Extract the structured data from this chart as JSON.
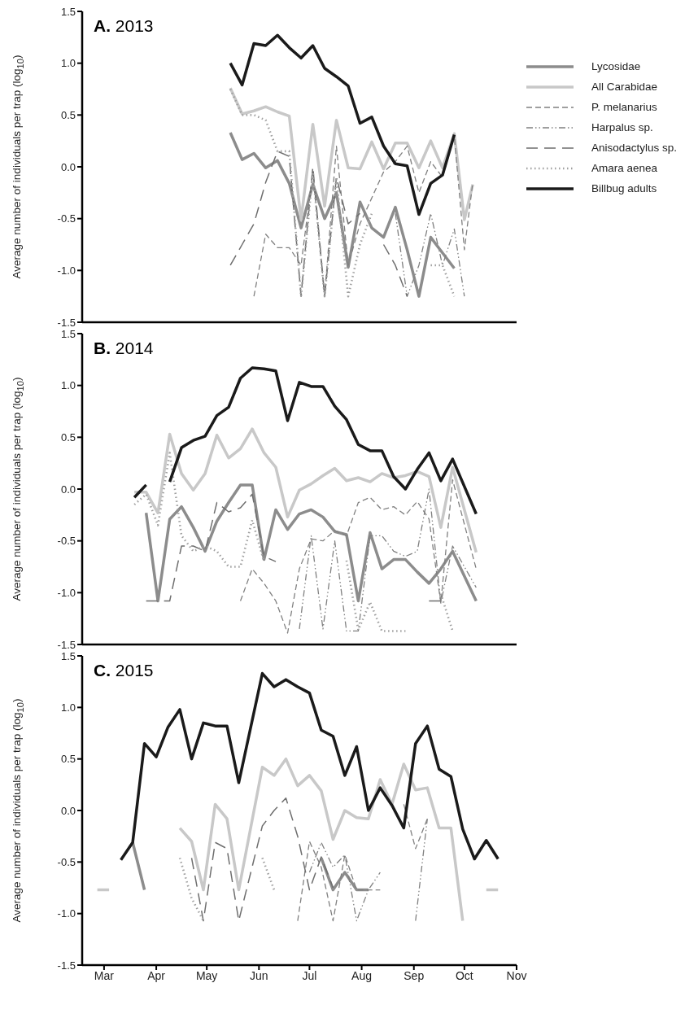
{
  "chart_data": [
    {
      "type": "line",
      "title": "A. 2013",
      "ylabel": "Average number of individuals per trap (log$_{10}$)",
      "x": [
        "--05-15",
        "--05-22",
        "--05-29",
        "--06-05",
        "--06-12",
        "--06-19",
        "--06-26",
        "--07-03",
        "--07-10",
        "--07-17",
        "--07-24",
        "--07-31",
        "--08-07",
        "--08-14",
        "--08-21",
        "--08-28",
        "--09-04",
        "--09-11",
        "--09-18",
        "--09-25",
        "--10-01",
        "--10-06"
      ],
      "series": [
        {
          "name": "Lycosidae",
          "color": "#8c8c8c",
          "line_style": "solid",
          "values": [
            0.33,
            0.07,
            0.13,
            -0.01,
            0.06,
            -0.16,
            -0.59,
            -0.17,
            -0.5,
            -0.25,
            -0.97,
            -0.34,
            -0.59,
            -0.68,
            -0.39,
            -0.8,
            -1.25,
            -0.68,
            -0.83,
            -0.98,
            null,
            null
          ]
        },
        {
          "name": "All Carabidae",
          "color": "#c8c8c8",
          "line_style": "solid",
          "values": [
            0.76,
            0.51,
            0.54,
            0.58,
            0.53,
            0.49,
            -0.51,
            0.41,
            -0.38,
            0.45,
            -0.01,
            -0.02,
            0.24,
            -0.02,
            0.23,
            0.23,
            -0.01,
            0.25,
            -0.01,
            0.32,
            -0.51,
            -0.17
          ]
        },
        {
          "name": "P. melanarius",
          "color": "#808080",
          "line_style": "dashed",
          "values": [
            null,
            null,
            -1.25,
            -0.65,
            -0.78,
            -0.78,
            -0.95,
            -0.05,
            -1.25,
            0.2,
            -0.95,
            -0.55,
            -0.3,
            -0.05,
            0.05,
            0.2,
            -0.25,
            0.05,
            -0.1,
            0.3,
            -0.8,
            -0.15
          ]
        },
        {
          "name": "Harpalus sp.",
          "color": "#808080",
          "line_style": "dashdot",
          "values": [
            null,
            null,
            null,
            null,
            null,
            null,
            null,
            null,
            null,
            null,
            null,
            null,
            null,
            null,
            -0.45,
            -1.25,
            -0.95,
            -0.45,
            -0.95,
            -0.6,
            -1.25,
            null
          ]
        },
        {
          "name": "Anisodactylus sp.",
          "color": "#6e6e6e",
          "line_style": "longdash",
          "values": [
            -0.95,
            -0.75,
            -0.55,
            -0.15,
            0.15,
            0.1,
            -1.25,
            0.0,
            -1.25,
            -0.1,
            -0.55,
            -0.45,
            null,
            -0.75,
            -0.95,
            -1.25,
            null,
            null,
            null,
            null,
            null,
            null
          ]
        },
        {
          "name": "Amara aenea",
          "color": "#a0a0a0",
          "line_style": "dotted",
          "values": [
            0.75,
            0.5,
            0.5,
            0.45,
            0.15,
            0.15,
            -1.25,
            -0.05,
            -1.25,
            -0.1,
            -1.25,
            -0.75,
            -0.45,
            null,
            null,
            null,
            null,
            -0.95,
            -0.95,
            -1.25,
            null,
            null
          ]
        },
        {
          "name": "Billbug adults",
          "color": "#1a1a1a",
          "line_style": "solid",
          "values": [
            1.0,
            0.79,
            1.19,
            1.17,
            1.27,
            1.15,
            1.05,
            1.17,
            0.95,
            0.87,
            0.78,
            0.42,
            0.48,
            0.2,
            0.03,
            0.01,
            -0.46,
            -0.16,
            -0.08,
            0.31,
            null,
            null
          ]
        }
      ],
      "xlim": [
        "--02-16",
        "--11-01"
      ],
      "xticks": [
        {
          "value": "--03-01",
          "label": null
        },
        {
          "value": "--04-01",
          "label": null
        },
        {
          "value": "--05-01",
          "label": null
        },
        {
          "value": "--06-01",
          "label": null
        },
        {
          "value": "--07-01",
          "label": null
        },
        {
          "value": "--08-01",
          "label": null
        },
        {
          "value": "--09-01",
          "label": null
        },
        {
          "value": "--10-01",
          "label": null
        },
        {
          "value": "--11-01",
          "label": null
        }
      ],
      "ylim": [
        -1.5,
        1.5
      ],
      "yticks": [
        {
          "value": -1.5,
          "label": "-1.5"
        },
        {
          "value": -1,
          "label": "-1.0"
        },
        {
          "value": -0.5,
          "label": "-0.5"
        },
        {
          "value": 0,
          "label": "0.0"
        },
        {
          "value": 0.5,
          "label": "0.5"
        },
        {
          "value": 1,
          "label": "1.0"
        },
        {
          "value": 1.5,
          "label": "1.5"
        }
      ],
      "tick_labels": "y",
      "legend": "top right",
      "grid": false
    },
    {
      "type": "line",
      "title": "B. 2014",
      "ylabel": "Average number of individuals per trap (log$_{10}$)",
      "x": [
        "--03-19",
        "--03-26",
        "--04-02",
        "--04-09",
        "--04-16",
        "--04-23",
        "--04-30",
        "--05-07",
        "--05-14",
        "--05-21",
        "--05-28",
        "--06-04",
        "--06-11",
        "--06-18",
        "--06-25",
        "--07-02",
        "--07-09",
        "--07-16",
        "--07-23",
        "--07-30",
        "--08-06",
        "--08-13",
        "--08-20",
        "--08-27",
        "--09-03",
        "--09-10",
        "--09-17",
        "--09-24",
        "--10-08"
      ],
      "series": [
        {
          "color": "#8c8c8c",
          "line_style": "solid",
          "values": [
            null,
            -0.23,
            -1.08,
            -0.29,
            -0.17,
            -0.37,
            -0.6,
            -0.31,
            -0.13,
            0.04,
            0.04,
            -0.68,
            -0.2,
            -0.39,
            -0.24,
            -0.2,
            -0.27,
            -0.41,
            -0.44,
            -1.08,
            -0.42,
            -0.77,
            -0.68,
            -0.68,
            -0.8,
            -0.91,
            -0.77,
            -0.6,
            -1.08
          ]
        },
        {
          "color": "#c8c8c8",
          "line_style": "solid",
          "values": [
            -0.03,
            -0.03,
            -0.23,
            0.53,
            0.15,
            -0.01,
            0.15,
            0.52,
            0.3,
            0.39,
            0.58,
            0.35,
            0.21,
            -0.27,
            -0.01,
            0.05,
            0.13,
            0.2,
            0.08,
            0.11,
            0.07,
            0.15,
            0.11,
            0.13,
            0.17,
            0.12,
            -0.37,
            0.21,
            -0.61
          ]
        },
        {
          "color": "#808080",
          "line_style": "dashed",
          "values": [
            null,
            null,
            null,
            null,
            null,
            null,
            null,
            null,
            null,
            -1.08,
            -0.77,
            -0.91,
            -1.08,
            -1.39,
            -0.77,
            -0.48,
            -0.5,
            -0.4,
            -0.45,
            -0.13,
            -0.08,
            -0.2,
            -0.17,
            -0.25,
            -0.12,
            -0.29,
            -1.1,
            0.09,
            -0.77
          ]
        },
        {
          "color": "#808080",
          "line_style": "dashdot",
          "values": [
            null,
            null,
            null,
            null,
            null,
            null,
            null,
            null,
            null,
            null,
            null,
            null,
            null,
            null,
            -1.35,
            -0.45,
            -1.35,
            -0.5,
            -1.37,
            -1.37,
            -0.45,
            -0.45,
            -0.6,
            -0.65,
            -0.6,
            0.0,
            -1.1,
            -0.55,
            -0.95
          ]
        },
        {
          "color": "#6e6e6e",
          "line_style": "longdash",
          "values": [
            null,
            -1.08,
            -1.08,
            -1.08,
            -0.55,
            -0.55,
            -0.6,
            -0.13,
            -0.22,
            -0.18,
            -0.05,
            -0.65,
            -0.7,
            null,
            null,
            null,
            null,
            null,
            null,
            null,
            null,
            null,
            null,
            null,
            null,
            -1.08,
            -1.08,
            null,
            null
          ]
        },
        {
          "color": "#a0a0a0",
          "line_style": "dotted",
          "values": [
            -0.15,
            -0.05,
            -0.35,
            0.35,
            -0.45,
            -0.6,
            -0.55,
            -0.6,
            -0.75,
            -0.75,
            -0.3,
            -0.7,
            null,
            null,
            null,
            null,
            null,
            null,
            -0.69,
            -1.36,
            -1.09,
            -1.37,
            -1.37,
            -1.37,
            null,
            null,
            -1.01,
            -1.37,
            null
          ]
        },
        {
          "color": "#1a1a1a",
          "line_style": "solid",
          "values": [
            -0.08,
            0.04,
            null,
            0.07,
            0.4,
            0.47,
            0.51,
            0.71,
            0.79,
            1.07,
            1.17,
            1.16,
            1.14,
            0.66,
            1.03,
            0.99,
            0.99,
            0.8,
            0.67,
            0.43,
            0.37,
            0.37,
            0.12,
            0.0,
            0.19,
            0.35,
            0.08,
            0.29,
            -0.24
          ]
        }
      ],
      "xlim": [
        "--02-16",
        "--11-01"
      ],
      "xticks": [
        {
          "value": "--03-01",
          "label": null
        },
        {
          "value": "--04-01",
          "label": null
        },
        {
          "value": "--05-01",
          "label": null
        },
        {
          "value": "--06-01",
          "label": null
        },
        {
          "value": "--07-01",
          "label": null
        },
        {
          "value": "--08-01",
          "label": null
        },
        {
          "value": "--09-01",
          "label": null
        },
        {
          "value": "--10-01",
          "label": null
        },
        {
          "value": "--11-01",
          "label": null
        }
      ],
      "ylim": [
        -1.5,
        1.5
      ],
      "yticks": [
        {
          "value": -1.5,
          "label": "-1.5"
        },
        {
          "value": -1,
          "label": "-1.0"
        },
        {
          "value": -0.5,
          "label": "-0.5"
        },
        {
          "value": 0,
          "label": "0.0"
        },
        {
          "value": 0.5,
          "label": "0.5"
        },
        {
          "value": 1,
          "label": "1.0"
        },
        {
          "value": 1.5,
          "label": "1.5"
        }
      ],
      "tick_labels": "y",
      "legend": false,
      "grid": false
    },
    {
      "type": "line",
      "title": "C. 2015",
      "ylabel": "Average number of individuals per trap (log$_{10}$)",
      "x": [
        "--02-25",
        "--03-04",
        "--03-11",
        "--03-18",
        "--03-25",
        "--04-01",
        "--04-08",
        "--04-15",
        "--04-22",
        "--04-29",
        "--05-06",
        "--05-13",
        "--05-20",
        "--06-03",
        "--06-10",
        "--06-17",
        "--06-24",
        "--07-01",
        "--07-08",
        "--07-15",
        "--07-22",
        "--07-29",
        "--08-05",
        "--08-12",
        "--08-19",
        "--08-26",
        "--09-02",
        "--09-09",
        "--09-16",
        "--09-23",
        "--09-30",
        "--10-07",
        "--10-14",
        "--10-21"
      ],
      "series": [
        {
          "color": "#8c8c8c",
          "line_style": "solid",
          "values": [
            null,
            null,
            null,
            -0.31,
            -0.77,
            null,
            null,
            null,
            null,
            null,
            null,
            null,
            null,
            null,
            null,
            null,
            null,
            null,
            -0.46,
            -0.77,
            -0.6,
            -0.77,
            -0.77,
            null,
            null,
            null,
            null,
            null,
            null,
            null,
            null,
            null,
            null,
            null
          ]
        },
        {
          "color": "#c8c8c8",
          "line_style": "solid",
          "values": [
            -0.77,
            -0.77,
            null,
            null,
            null,
            null,
            null,
            -0.17,
            -0.3,
            -0.77,
            0.06,
            -0.08,
            -0.77,
            0.42,
            0.34,
            0.5,
            0.24,
            0.34,
            0.19,
            -0.28,
            0.0,
            -0.07,
            -0.08,
            0.3,
            0.06,
            0.45,
            0.2,
            0.22,
            -0.17,
            -0.17,
            -1.07,
            null,
            -0.77,
            -0.77
          ]
        },
        {
          "color": "#808080",
          "line_style": "dashed",
          "values": [
            null,
            null,
            null,
            null,
            null,
            null,
            null,
            null,
            null,
            null,
            null,
            null,
            null,
            null,
            null,
            null,
            -1.07,
            -0.3,
            -0.55,
            -1.07,
            -0.43,
            -0.77,
            -0.77,
            -0.77,
            null,
            0.06,
            -0.37,
            -0.08,
            null,
            null,
            null,
            null,
            null,
            null
          ]
        },
        {
          "color": "#808080",
          "line_style": "dashdot",
          "values": [
            null,
            null,
            null,
            null,
            null,
            null,
            null,
            null,
            null,
            null,
            null,
            null,
            null,
            null,
            null,
            null,
            null,
            -0.6,
            -0.31,
            -0.55,
            -0.43,
            -1.07,
            -0.77,
            -0.6,
            null,
            null,
            -1.07,
            -0.08,
            null,
            null,
            null,
            null,
            null,
            null
          ]
        },
        {
          "color": "#6e6e6e",
          "line_style": "longdash",
          "values": [
            null,
            null,
            null,
            null,
            null,
            null,
            null,
            null,
            -0.46,
            -1.07,
            -0.31,
            -0.37,
            -1.07,
            -0.15,
            0.0,
            0.12,
            -0.25,
            -0.77,
            -0.45,
            -0.75,
            null,
            null,
            null,
            null,
            null,
            null,
            null,
            null,
            null,
            null,
            null,
            null,
            null,
            null
          ]
        },
        {
          "color": "#a0a0a0",
          "line_style": "dotted",
          "values": [
            null,
            null,
            null,
            null,
            null,
            null,
            null,
            -0.46,
            -0.85,
            -1.07,
            null,
            null,
            null,
            -0.46,
            -0.77,
            null,
            null,
            null,
            null,
            null,
            null,
            null,
            null,
            null,
            null,
            null,
            null,
            null,
            null,
            null,
            null,
            null,
            null,
            null
          ]
        },
        {
          "color": "#1a1a1a",
          "line_style": "solid",
          "values": [
            null,
            null,
            -0.48,
            -0.31,
            0.65,
            0.52,
            0.81,
            0.98,
            0.5,
            0.85,
            0.82,
            0.82,
            0.27,
            1.33,
            1.2,
            1.27,
            1.2,
            1.14,
            0.78,
            0.72,
            0.34,
            0.62,
            0.0,
            0.22,
            0.05,
            -0.17,
            0.65,
            0.82,
            0.4,
            0.33,
            -0.18,
            -0.47,
            -0.29,
            -0.47
          ]
        }
      ],
      "xlim": [
        "--02-16",
        "--11-01"
      ],
      "xticks": [
        {
          "value": "--03-01",
          "label": "Mar"
        },
        {
          "value": "--04-01",
          "label": "Apr"
        },
        {
          "value": "--05-01",
          "label": "May"
        },
        {
          "value": "--06-01",
          "label": "Jun"
        },
        {
          "value": "--07-01",
          "label": "Jul"
        },
        {
          "value": "--08-01",
          "label": "Aug"
        },
        {
          "value": "--09-01",
          "label": "Sep"
        },
        {
          "value": "--10-01",
          "label": "Oct"
        },
        {
          "value": "--11-01",
          "label": "Nov"
        }
      ],
      "ylim": [
        -1.5,
        1.5
      ],
      "yticks": [
        {
          "value": -1.5,
          "label": "-1.5"
        },
        {
          "value": -1,
          "label": "-1.0"
        },
        {
          "value": -0.5,
          "label": "-0.5"
        },
        {
          "value": 0,
          "label": "0.0"
        },
        {
          "value": 0.5,
          "label": "0.5"
        },
        {
          "value": 1,
          "label": "1.0"
        },
        {
          "value": 1.5,
          "label": "1.5"
        }
      ],
      "legend": false,
      "grid": false
    }
  ]
}
